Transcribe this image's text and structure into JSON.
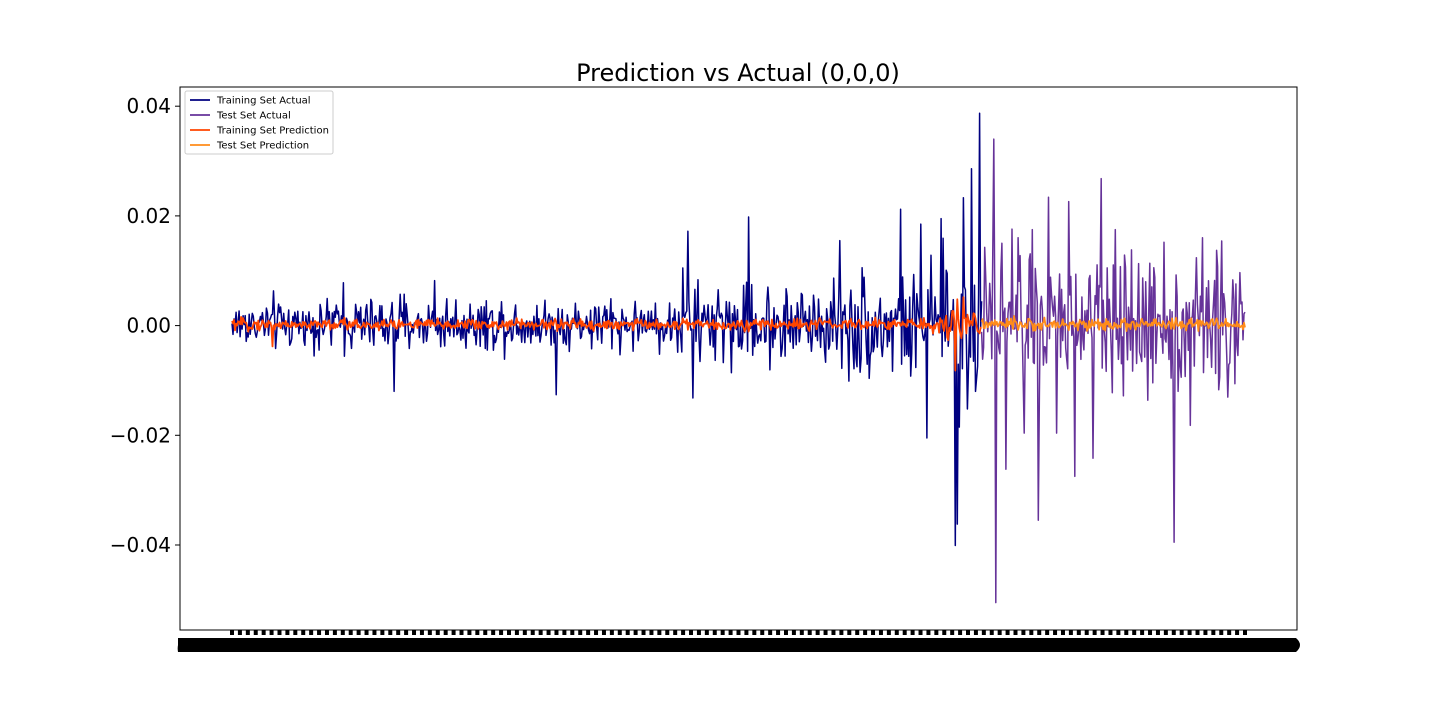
{
  "chart_data": {
    "type": "line",
    "title": "Prediction vs Actual (0,0,0)",
    "xlabel": "",
    "ylabel": "",
    "ylim": [
      -0.0555,
      0.0435
    ],
    "yticks": [
      {
        "value": 0.04,
        "label": "0.04"
      },
      {
        "value": 0.02,
        "label": "0.02"
      },
      {
        "value": 0.0,
        "label": "0.00"
      },
      {
        "value": -0.02,
        "label": "−0.02"
      },
      {
        "value": -0.04,
        "label": "−0.04"
      }
    ],
    "x_index_range": [
      0,
      1000
    ],
    "train_test_split_index": 740,
    "legend_position": "upper-left",
    "grid": false,
    "series": [
      {
        "name": "Training Set Actual",
        "color": "#000080",
        "kind": "actual",
        "range": [
          0,
          740
        ],
        "spikes": [
          [
            450,
            0.0172
          ],
          [
            455,
            -0.0132
          ],
          [
            445,
            0.0105
          ],
          [
            510,
            0.0198
          ],
          [
            600,
            0.0155
          ],
          [
            620,
            -0.0085
          ],
          [
            660,
            0.0212
          ],
          [
            670,
            -0.0092
          ],
          [
            686,
            -0.0205
          ],
          [
            700,
            0.0195
          ],
          [
            706,
            0.0095
          ],
          [
            714,
            -0.0401
          ],
          [
            716,
            -0.0362
          ],
          [
            718,
            -0.0185
          ],
          [
            722,
            0.0233
          ],
          [
            726,
            -0.0152
          ],
          [
            730,
            0.0286
          ],
          [
            734,
            -0.012
          ],
          [
            738,
            0.0387
          ],
          [
            680,
            0.0185
          ],
          [
            320,
            -0.0126
          ],
          [
            160,
            -0.012
          ],
          [
            110,
            0.0078
          ],
          [
            200,
            0.0082
          ]
        ]
      },
      {
        "name": "Test Set Actual",
        "color": "#663399",
        "kind": "actual",
        "range": [
          740,
          1000
        ],
        "spikes": [
          [
            752,
            0.034
          ],
          [
            754,
            -0.0505
          ],
          [
            760,
            0.015
          ],
          [
            764,
            -0.0262
          ],
          [
            770,
            0.0176
          ],
          [
            776,
            0.016
          ],
          [
            782,
            -0.0196
          ],
          [
            790,
            0.0175
          ],
          [
            796,
            -0.0355
          ],
          [
            806,
            0.0234
          ],
          [
            814,
            -0.0196
          ],
          [
            826,
            0.0226
          ],
          [
            832,
            -0.0275
          ],
          [
            850,
            -0.0242
          ],
          [
            858,
            0.0268
          ],
          [
            872,
            0.0175
          ],
          [
            888,
            0.0138
          ],
          [
            904,
            -0.0136
          ],
          [
            920,
            0.0152
          ],
          [
            930,
            -0.0395
          ],
          [
            946,
            -0.0182
          ],
          [
            958,
            0.016
          ],
          [
            972,
            0.0137
          ],
          [
            990,
            -0.0106
          ]
        ]
      },
      {
        "name": "Training Set Prediction",
        "color": "#ff4500",
        "kind": "prediction",
        "range": [
          0,
          740
        ],
        "spikes": [
          [
            714,
            -0.0082
          ],
          [
            722,
            0.0052
          ],
          [
            716,
            0.0048
          ],
          [
            40,
            -0.0038
          ]
        ]
      },
      {
        "name": "Test Set Prediction",
        "color": "#ff8c1a",
        "kind": "prediction",
        "range": [
          740,
          1000
        ],
        "spikes": []
      }
    ]
  }
}
